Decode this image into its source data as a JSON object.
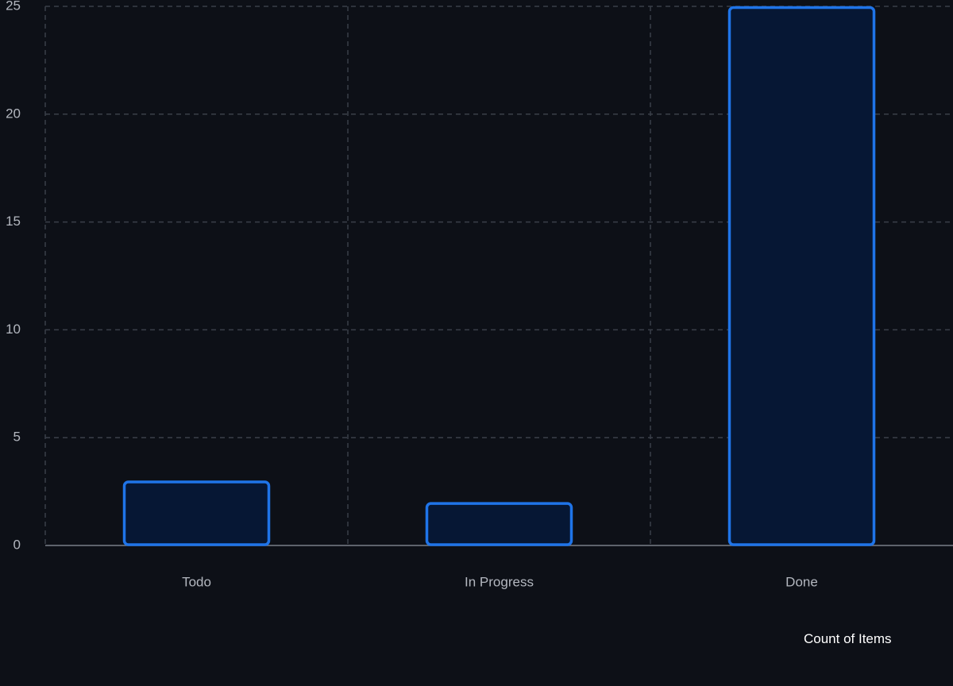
{
  "chart_data": {
    "type": "bar",
    "categories": [
      "Todo",
      "In Progress",
      "Done"
    ],
    "series": [
      {
        "name": "Count of Items",
        "values": [
          3,
          2,
          25
        ]
      }
    ],
    "ylim": [
      0,
      25
    ],
    "yticks": [
      0,
      5,
      10,
      15,
      20,
      25
    ],
    "grid": true,
    "legend_position": "bottom-right",
    "colors": {
      "background": "#0d1017",
      "bar_fill": "#061734",
      "bar_stroke": "#1f74e8",
      "grid": "#3a3f49",
      "axis": "#7a7f88",
      "tick_text": "#b3b7bf",
      "legend_text": "#ffffff"
    }
  }
}
